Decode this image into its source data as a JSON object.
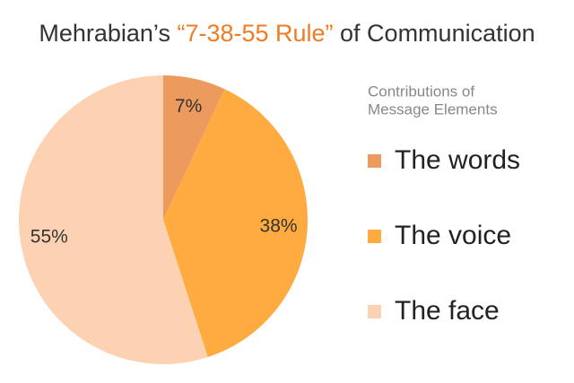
{
  "chart_data": {
    "type": "pie",
    "title": [
      "Mehrabian’s ",
      "“7-38-55 Rule”",
      " of Communication"
    ],
    "title_colors": [
      "#333333",
      "#f07b22",
      "#333333"
    ],
    "legend_title": [
      "Contributions of",
      "Message Elements"
    ],
    "categories": [
      "The words",
      "The voice",
      "The face"
    ],
    "values": [
      7,
      38,
      55
    ],
    "value_labels": [
      "7%",
      "38%",
      "55%"
    ],
    "colors": [
      "#ec9a5e",
      "#ffab3f",
      "#fdd2b2"
    ]
  }
}
